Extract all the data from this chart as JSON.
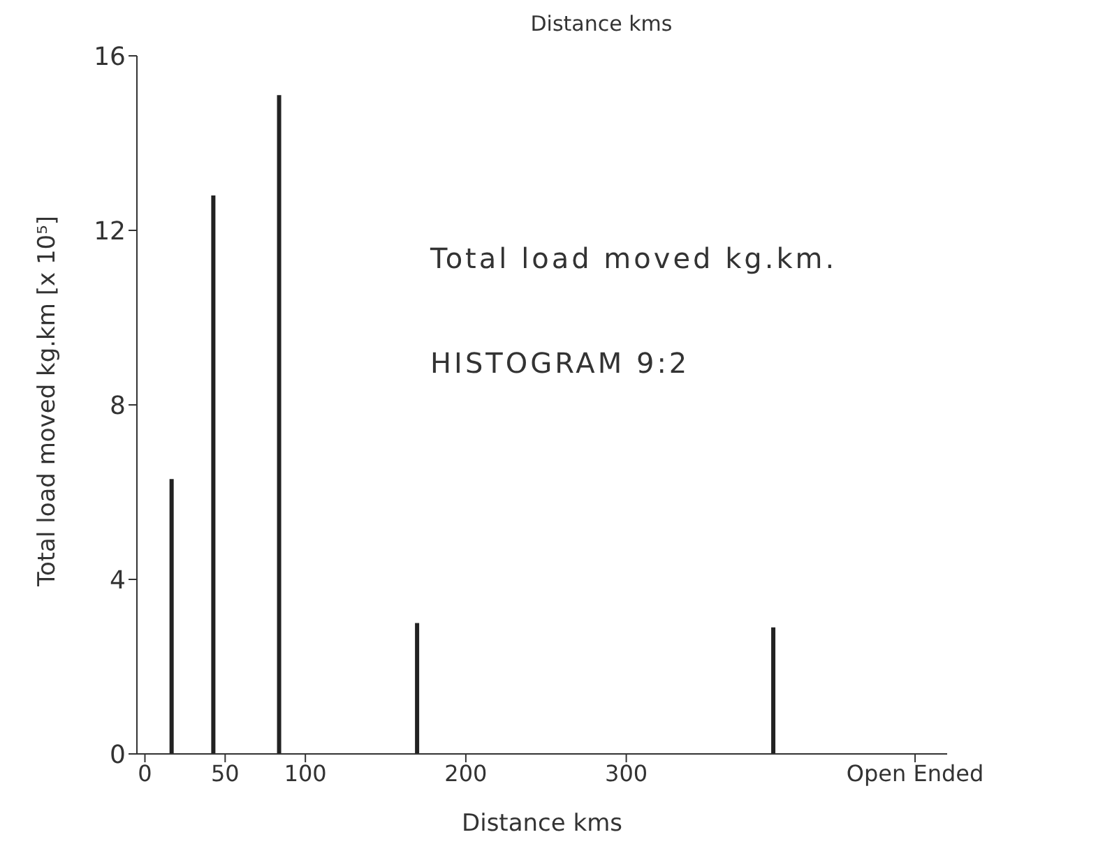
{
  "chart_data": {
    "type": "bar",
    "title": "Distance kms",
    "xlabel": "Distance kms",
    "ylabel": "Total load moved kg.km [x 10⁵]",
    "annotations": [
      "Total load moved kg.km.",
      "HISTOGRAM 9:2"
    ],
    "x": [
      17,
      43,
      84,
      170,
      392
    ],
    "series": [
      {
        "color": "#222222",
        "values": [
          6.3,
          12.8,
          15.1,
          3.0,
          2.9
        ]
      }
    ],
    "xlim": [
      -5,
      500
    ],
    "xticks": [
      0,
      50,
      100,
      200,
      300,
      {
        "value": 480,
        "label": "Open Ended"
      }
    ],
    "ylim": [
      0,
      16
    ],
    "yticks": [
      0,
      4,
      8,
      12,
      16
    ],
    "grid": false,
    "legend": false
  }
}
